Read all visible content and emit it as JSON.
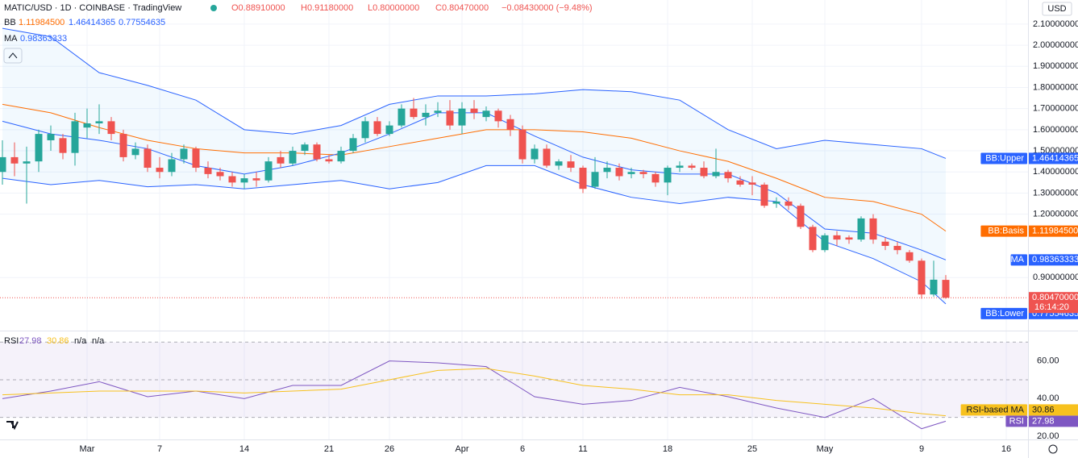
{
  "header": {
    "symbol": "MATIC/USD · 1D · COINBASE · TradingView",
    "open": "O0.88910000",
    "high": "H0.91180000",
    "low": "L0.80000000",
    "close": "C0.80470000",
    "change": "−0.08430000 (−9.48%)"
  },
  "currency": "USD",
  "legend": [
    {
      "label": "BB",
      "values": [
        "1.11984500",
        "1.46414365",
        "0.77554635"
      ],
      "colors": [
        "#ff6d00",
        "#2962ff",
        "#2962ff"
      ]
    },
    {
      "label": "MA",
      "values": [
        "0.98363333"
      ],
      "colors": [
        "#2962ff"
      ]
    }
  ],
  "last_price": "0.80470000",
  "countdown": "16:14:20",
  "chart_data": [
    {
      "type": "candlestick",
      "up_color": "#26a69a",
      "down_color": "#ef5350",
      "xlim": [
        -0.2,
        84.8
      ],
      "xticks": [
        {
          "value": 7,
          "label": "Mar"
        },
        {
          "value": 13,
          "label": "7"
        },
        {
          "value": 20,
          "label": "14"
        },
        {
          "value": 27,
          "label": "21"
        },
        {
          "value": 32,
          "label": "26"
        },
        {
          "value": 38,
          "label": "Apr"
        },
        {
          "value": 43,
          "label": "6"
        },
        {
          "value": 48,
          "label": "11"
        },
        {
          "value": 55,
          "label": "18"
        },
        {
          "value": 62,
          "label": "25"
        },
        {
          "value": 68,
          "label": "May"
        },
        {
          "value": 76,
          "label": "9"
        },
        {
          "value": 83,
          "label": "16"
        }
      ],
      "ylim": [
        0.649,
        2.214
      ],
      "yticks": [
        {
          "value": 2.1,
          "label": "2.10000000"
        },
        {
          "value": 2.0,
          "label": "2.00000000"
        },
        {
          "value": 1.9,
          "label": "1.90000000"
        },
        {
          "value": 1.8,
          "label": "1.80000000"
        },
        {
          "value": 1.7,
          "label": "1.70000000"
        },
        {
          "value": 1.6,
          "label": "1.60000000"
        },
        {
          "value": 1.5,
          "label": "1.50000000"
        },
        {
          "value": 1.4,
          "label": "1.40000000"
        },
        {
          "value": 1.3,
          "label": "1.30000000"
        },
        {
          "value": 1.2,
          "label": "1.20000000"
        },
        {
          "value": 0.9,
          "label": "0.90000000"
        }
      ],
      "grid": true,
      "open": [
        1.4,
        1.47,
        1.44,
        1.45,
        1.55,
        1.56,
        1.49,
        1.61,
        1.63,
        1.64,
        1.58,
        1.48,
        1.51,
        1.42,
        1.4,
        1.46,
        1.51,
        1.42,
        1.4,
        1.38,
        1.35,
        1.37,
        1.36,
        1.47,
        1.44,
        1.5,
        1.53,
        1.46,
        1.45,
        1.5,
        1.56,
        1.64,
        1.58,
        1.62,
        1.7,
        1.66,
        1.68,
        1.69,
        1.62,
        1.7,
        1.66,
        1.69,
        1.65,
        1.6,
        1.46,
        1.51,
        1.43,
        1.45,
        1.42,
        1.33,
        1.4,
        1.42,
        1.39,
        1.4,
        1.39,
        1.35,
        1.42,
        1.43,
        1.42,
        1.38,
        1.4,
        1.36,
        1.35,
        1.34,
        1.25,
        1.26,
        1.24,
        1.14,
        1.03,
        1.1,
        1.09,
        1.08,
        1.18,
        1.07,
        1.05,
        1.02,
        0.98,
        0.82,
        0.8891
      ],
      "high": [
        1.55,
        1.54,
        1.52,
        1.6,
        1.62,
        1.58,
        1.68,
        1.7,
        1.72,
        1.66,
        1.6,
        1.54,
        1.53,
        1.47,
        1.49,
        1.53,
        1.52,
        1.45,
        1.42,
        1.4,
        1.39,
        1.4,
        1.47,
        1.5,
        1.52,
        1.54,
        1.54,
        1.48,
        1.52,
        1.58,
        1.66,
        1.66,
        1.64,
        1.72,
        1.75,
        1.72,
        1.73,
        1.74,
        1.73,
        1.74,
        1.71,
        1.7,
        1.67,
        1.62,
        1.53,
        1.53,
        1.46,
        1.48,
        1.43,
        1.47,
        1.45,
        1.44,
        1.42,
        1.41,
        1.4,
        1.43,
        1.45,
        1.44,
        1.45,
        1.51,
        1.41,
        1.38,
        1.38,
        1.35,
        1.28,
        1.28,
        1.25,
        1.15,
        1.11,
        1.12,
        1.1,
        1.19,
        1.2,
        1.09,
        1.07,
        1.03,
        0.99,
        0.98,
        0.9118
      ],
      "low": [
        1.34,
        1.38,
        1.25,
        1.4,
        1.5,
        1.46,
        1.43,
        1.56,
        1.58,
        1.55,
        1.45,
        1.46,
        1.4,
        1.37,
        1.38,
        1.44,
        1.4,
        1.37,
        1.36,
        1.33,
        1.32,
        1.33,
        1.35,
        1.42,
        1.43,
        1.48,
        1.45,
        1.44,
        1.44,
        1.49,
        1.54,
        1.57,
        1.57,
        1.61,
        1.65,
        1.62,
        1.66,
        1.6,
        1.58,
        1.65,
        1.64,
        1.61,
        1.57,
        1.44,
        1.44,
        1.42,
        1.41,
        1.4,
        1.3,
        1.32,
        1.37,
        1.36,
        1.37,
        1.37,
        1.33,
        1.29,
        1.4,
        1.41,
        1.37,
        1.37,
        1.35,
        1.33,
        1.29,
        1.23,
        1.23,
        1.22,
        1.13,
        1.02,
        1.02,
        1.05,
        1.06,
        1.07,
        1.06,
        1.03,
        1.01,
        0.97,
        0.8,
        0.81,
        0.8
      ],
      "close": [
        1.47,
        1.44,
        1.45,
        1.58,
        1.58,
        1.49,
        1.64,
        1.63,
        1.64,
        1.58,
        1.47,
        1.51,
        1.42,
        1.4,
        1.46,
        1.51,
        1.42,
        1.39,
        1.38,
        1.35,
        1.37,
        1.36,
        1.45,
        1.44,
        1.5,
        1.53,
        1.46,
        1.45,
        1.5,
        1.56,
        1.64,
        1.58,
        1.62,
        1.7,
        1.66,
        1.68,
        1.69,
        1.62,
        1.7,
        1.68,
        1.69,
        1.64,
        1.6,
        1.46,
        1.51,
        1.43,
        1.45,
        1.42,
        1.32,
        1.4,
        1.42,
        1.38,
        1.4,
        1.39,
        1.35,
        1.42,
        1.43,
        1.42,
        1.38,
        1.4,
        1.37,
        1.34,
        1.34,
        1.24,
        1.26,
        1.24,
        1.14,
        1.03,
        1.1,
        1.08,
        1.08,
        1.18,
        1.08,
        1.05,
        1.03,
        0.98,
        0.82,
        0.89,
        0.8047
      ],
      "overlays": [
        {
          "name": "BB:Upper",
          "color": "#2962ff",
          "tag": "1.46414365",
          "x": [
            0,
            4,
            8,
            12,
            16,
            20,
            24,
            28,
            32,
            36,
            40,
            44,
            48,
            52,
            56,
            60,
            64,
            68,
            72,
            76,
            78
          ],
          "values": [
            2.08,
            2.04,
            1.87,
            1.81,
            1.74,
            1.6,
            1.58,
            1.62,
            1.72,
            1.76,
            1.76,
            1.77,
            1.79,
            1.78,
            1.74,
            1.6,
            1.51,
            1.55,
            1.53,
            1.51,
            1.46414365
          ]
        },
        {
          "name": "BB:Basis",
          "color": "#ff6d00",
          "tag": "1.11984500",
          "x": [
            0,
            4,
            8,
            12,
            16,
            20,
            24,
            28,
            32,
            36,
            40,
            44,
            48,
            52,
            56,
            60,
            64,
            68,
            72,
            76,
            78
          ],
          "values": [
            1.72,
            1.68,
            1.61,
            1.55,
            1.51,
            1.49,
            1.49,
            1.48,
            1.52,
            1.56,
            1.6,
            1.6,
            1.59,
            1.56,
            1.5,
            1.45,
            1.37,
            1.28,
            1.26,
            1.2,
            1.119845
          ]
        },
        {
          "name": "MA",
          "color": "#2962ff",
          "tag": "0.98363333",
          "x": [
            0,
            4,
            8,
            12,
            16,
            20,
            24,
            28,
            32,
            36,
            40,
            44,
            48,
            52,
            56,
            60,
            64,
            68,
            72,
            76,
            78
          ],
          "values": [
            1.64,
            1.58,
            1.55,
            1.51,
            1.43,
            1.39,
            1.43,
            1.49,
            1.58,
            1.68,
            1.68,
            1.57,
            1.47,
            1.41,
            1.39,
            1.39,
            1.3,
            1.13,
            1.11,
            1.03,
            0.98363333
          ]
        },
        {
          "name": "BB:Lower",
          "color": "#2962ff",
          "tag": "0.77554635",
          "x": [
            0,
            4,
            8,
            12,
            16,
            20,
            24,
            28,
            32,
            36,
            40,
            44,
            48,
            52,
            56,
            60,
            64,
            68,
            72,
            76,
            78
          ],
          "values": [
            1.37,
            1.34,
            1.36,
            1.33,
            1.34,
            1.32,
            1.34,
            1.36,
            1.32,
            1.35,
            1.43,
            1.43,
            1.34,
            1.28,
            1.25,
            1.28,
            1.26,
            1.07,
            0.99,
            0.88,
            0.77554635
          ]
        }
      ]
    },
    {
      "type": "line",
      "title": "RSI",
      "legend_values": [
        "27.98",
        "30.86",
        "n/a",
        "n/a"
      ],
      "ylim": [
        18.3,
        75.7
      ],
      "yticks": [
        {
          "value": 60,
          "label": "60.00"
        },
        {
          "value": 40,
          "label": "40.00"
        },
        {
          "value": 20,
          "label": "20.00"
        }
      ],
      "levels": [
        70,
        50,
        30
      ],
      "series": [
        {
          "name": "RSI",
          "color": "#7e57c2",
          "tag": "27.98",
          "x": [
            0,
            4,
            8,
            12,
            16,
            20,
            24,
            28,
            32,
            36,
            40,
            44,
            48,
            52,
            56,
            60,
            64,
            68,
            72,
            76,
            78
          ],
          "values": [
            40,
            44,
            49,
            41,
            44,
            40,
            47,
            47,
            60,
            59,
            57,
            41,
            37,
            39,
            46,
            41,
            35,
            30,
            40,
            24,
            27.98
          ]
        },
        {
          "name": "RSI-based MA",
          "color": "#f7c11e",
          "tag": "30.86",
          "x": [
            0,
            4,
            8,
            12,
            16,
            20,
            24,
            28,
            32,
            36,
            40,
            44,
            48,
            52,
            56,
            60,
            64,
            68,
            72,
            76,
            78
          ],
          "values": [
            42,
            43,
            44,
            44,
            44,
            43,
            44,
            45,
            50,
            55,
            56,
            52,
            47,
            45,
            42,
            42,
            39,
            37,
            35,
            32,
            30.86
          ]
        }
      ]
    }
  ]
}
